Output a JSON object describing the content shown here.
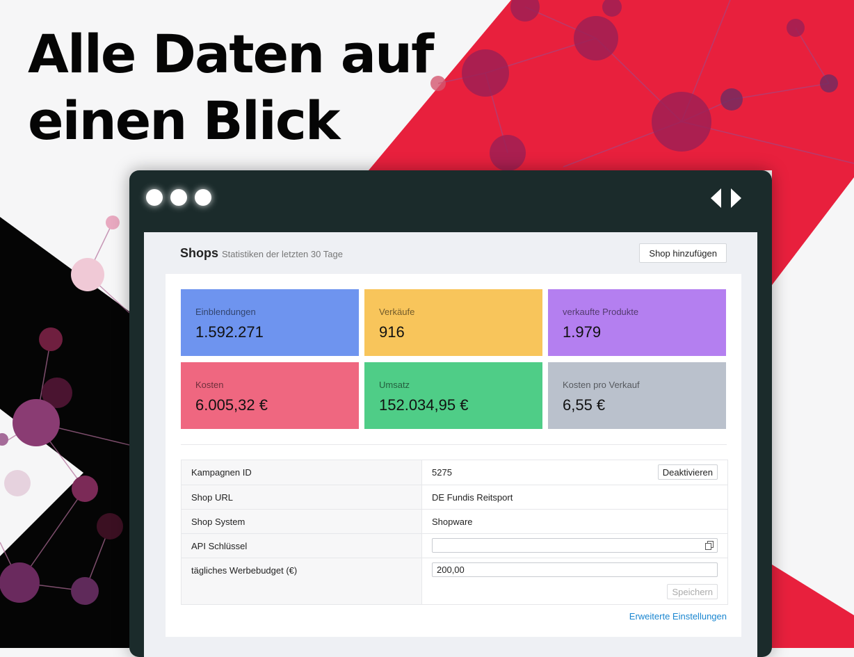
{
  "headline": {
    "line1": "Alle Daten auf",
    "line2": "einen Blick"
  },
  "colors": {
    "accent_red": "#e8203d",
    "window_frame": "#1b2b2b",
    "link": "#1a86d0"
  },
  "window": {
    "traffic_dots": [
      "dot",
      "dot",
      "dot"
    ],
    "nav_icons": [
      "chevron-left-icon",
      "chevron-right-icon"
    ]
  },
  "header": {
    "title": "Shops",
    "subtitle": "Statistiken der letzten 30 Tage",
    "add_button": "Shop hinzufügen"
  },
  "stats": [
    {
      "label": "Einblendungen",
      "value": "1.592.271",
      "color": "#6e94ef"
    },
    {
      "label": "Verkäufe",
      "value": "916",
      "color": "#f8c55b"
    },
    {
      "label": "verkaufte Produkte",
      "value": "1.979",
      "color": "#b47ff0"
    },
    {
      "label": "Kosten",
      "value": "6.005,32 €",
      "color": "#ef6780"
    },
    {
      "label": "Umsatz",
      "value": "152.034,95 €",
      "color": "#4fcd87"
    },
    {
      "label": "Kosten pro Verkauf",
      "value": "6,55 €",
      "color": "#bac1cc"
    }
  ],
  "info": {
    "campaign_id_label": "Kampagnen ID",
    "campaign_id_value": "5275",
    "deactivate_button": "Deaktivieren",
    "shop_url_label": "Shop URL",
    "shop_url_value": "DE Fundis Reitsport",
    "shop_system_label": "Shop System",
    "shop_system_value": "Shopware",
    "api_key_label": "API Schlüssel",
    "api_key_value": "",
    "budget_label": "tägliches Werbebudget (€)",
    "budget_value": "200,00",
    "save_button": "Speichern"
  },
  "advanced_link": "Erweiterte Einstellungen"
}
